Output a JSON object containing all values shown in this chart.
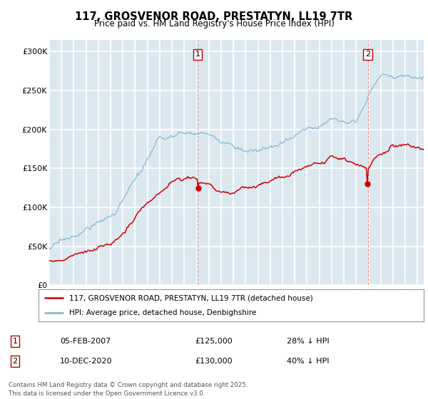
{
  "title": "117, GROSVENOR ROAD, PRESTATYN, LL19 7TR",
  "subtitle": "Price paid vs. HM Land Registry's House Price Index (HPI)",
  "ylabel_ticks": [
    "£0",
    "£50K",
    "£100K",
    "£150K",
    "£200K",
    "£250K",
    "£300K"
  ],
  "ytick_vals": [
    0,
    50000,
    100000,
    150000,
    200000,
    250000,
    300000
  ],
  "ylim": [
    0,
    315000
  ],
  "xlim_start": 1995.0,
  "xlim_end": 2025.5,
  "vline1_x": 2007.09,
  "vline2_x": 2020.94,
  "vline1_label": "1",
  "vline2_label": "2",
  "sale1_date": "05-FEB-2007",
  "sale1_price": "£125,000",
  "sale1_hpi": "28% ↓ HPI",
  "sale2_date": "10-DEC-2020",
  "sale2_price": "£130,000",
  "sale2_hpi": "40% ↓ HPI",
  "legend_line1": "117, GROSVENOR ROAD, PRESTATYN, LL19 7TR (detached house)",
  "legend_line2": "HPI: Average price, detached house, Denbighshire",
  "footer": "Contains HM Land Registry data © Crown copyright and database right 2025.\nThis data is licensed under the Open Government Licence v3.0.",
  "hpi_color": "#7ab3d4",
  "price_color": "#cc0000",
  "vline_color": "#e06060",
  "bg_color": "#dce8f0",
  "grid_color": "#ffffff",
  "sale1_price_val": 125000,
  "sale2_price_val": 130000,
  "sale1_year": 2007.09,
  "sale2_year": 2020.94
}
